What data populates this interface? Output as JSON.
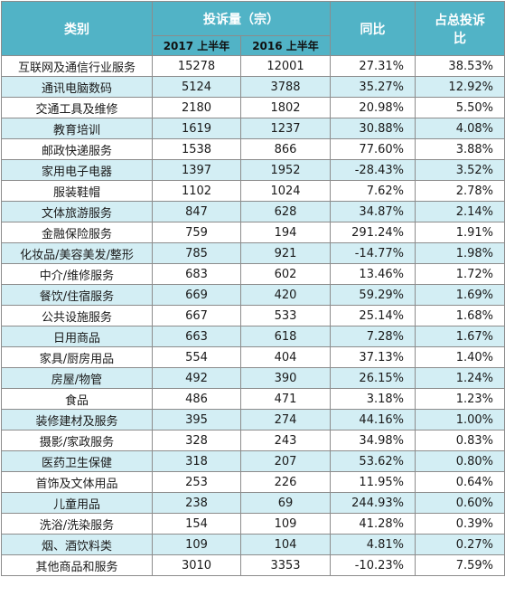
{
  "headers": {
    "category": "类别",
    "complaints": "投诉量（宗）",
    "y2017": "2017 上半年",
    "y2016": "2016 上半年",
    "yoy": "同比",
    "share_line1": "占总投诉",
    "share_line2": "比"
  },
  "rows": [
    {
      "category": "互联网及通信行业服务",
      "y2017": "15278",
      "y2016": "12001",
      "yoy": "27.31%",
      "share": "38.53%"
    },
    {
      "category": "通讯电脑数码",
      "y2017": "5124",
      "y2016": "3788",
      "yoy": "35.27%",
      "share": "12.92%"
    },
    {
      "category": "交通工具及维修",
      "y2017": "2180",
      "y2016": "1802",
      "yoy": "20.98%",
      "share": "5.50%"
    },
    {
      "category": "教育培训",
      "y2017": "1619",
      "y2016": "1237",
      "yoy": "30.88%",
      "share": "4.08%"
    },
    {
      "category": "邮政快递服务",
      "y2017": "1538",
      "y2016": "866",
      "yoy": "77.60%",
      "share": "3.88%"
    },
    {
      "category": "家用电子电器",
      "y2017": "1397",
      "y2016": "1952",
      "yoy": "-28.43%",
      "share": "3.52%"
    },
    {
      "category": "服装鞋帽",
      "y2017": "1102",
      "y2016": "1024",
      "yoy": "7.62%",
      "share": "2.78%"
    },
    {
      "category": "文体旅游服务",
      "y2017": "847",
      "y2016": "628",
      "yoy": "34.87%",
      "share": "2.14%"
    },
    {
      "category": "金融保险服务",
      "y2017": "759",
      "y2016": "194",
      "yoy": "291.24%",
      "share": "1.91%"
    },
    {
      "category": "化妆品/美容美发/整形",
      "y2017": "785",
      "y2016": "921",
      "yoy": "-14.77%",
      "share": "1.98%"
    },
    {
      "category": "中介/维修服务",
      "y2017": "683",
      "y2016": "602",
      "yoy": "13.46%",
      "share": "1.72%"
    },
    {
      "category": "餐饮/住宿服务",
      "y2017": "669",
      "y2016": "420",
      "yoy": "59.29%",
      "share": "1.69%"
    },
    {
      "category": "公共设施服务",
      "y2017": "667",
      "y2016": "533",
      "yoy": "25.14%",
      "share": "1.68%"
    },
    {
      "category": "日用商品",
      "y2017": "663",
      "y2016": "618",
      "yoy": "7.28%",
      "share": "1.67%"
    },
    {
      "category": "家具/厨房用品",
      "y2017": "554",
      "y2016": "404",
      "yoy": "37.13%",
      "share": "1.40%"
    },
    {
      "category": "房屋/物管",
      "y2017": "492",
      "y2016": "390",
      "yoy": "26.15%",
      "share": "1.24%"
    },
    {
      "category": "食品",
      "y2017": "486",
      "y2016": "471",
      "yoy": "3.18%",
      "share": "1.23%"
    },
    {
      "category": "装修建材及服务",
      "y2017": "395",
      "y2016": "274",
      "yoy": "44.16%",
      "share": "1.00%"
    },
    {
      "category": "摄影/家政服务",
      "y2017": "328",
      "y2016": "243",
      "yoy": "34.98%",
      "share": "0.83%"
    },
    {
      "category": "医药卫生保健",
      "y2017": "318",
      "y2016": "207",
      "yoy": "53.62%",
      "share": "0.80%"
    },
    {
      "category": "首饰及文体用品",
      "y2017": "253",
      "y2016": "226",
      "yoy": "11.95%",
      "share": "0.64%"
    },
    {
      "category": "儿童用品",
      "y2017": "238",
      "y2016": "69",
      "yoy": "244.93%",
      "share": "0.60%"
    },
    {
      "category": "洗浴/洗染服务",
      "y2017": "154",
      "y2016": "109",
      "yoy": "41.28%",
      "share": "0.39%"
    },
    {
      "category": "烟、酒饮料类",
      "y2017": "109",
      "y2016": "104",
      "yoy": "4.81%",
      "share": "0.27%"
    },
    {
      "category": "其他商品和服务",
      "y2017": "3010",
      "y2016": "3353",
      "yoy": "-10.23%",
      "share": "7.59%"
    }
  ],
  "colors": {
    "header_bg": "#51b3c6",
    "stripe": "#d3eef4",
    "border": "#8c8c8c"
  }
}
